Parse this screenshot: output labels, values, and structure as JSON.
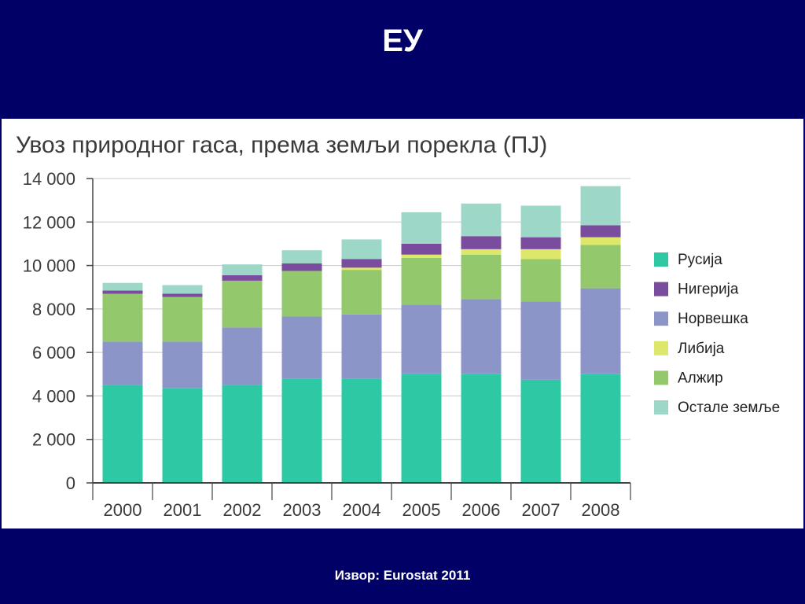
{
  "slide": {
    "title": "ЕУ",
    "source": "Извор: Eurostat 2011"
  },
  "colors": {
    "background": "#000066",
    "panel": "#ffffff",
    "axis": "#444444",
    "grid": "#c8c8c8"
  },
  "chart_data": {
    "type": "bar",
    "stacked": true,
    "title": "Увоз природног гаса, према земљи порекла (ПЈ)",
    "xlabel": "",
    "ylabel": "",
    "categories": [
      "2000",
      "2001",
      "2002",
      "2003",
      "2004",
      "2005",
      "2006",
      "2007",
      "2008"
    ],
    "ylim": [
      0,
      14000
    ],
    "yticks": [
      0,
      2000,
      4000,
      6000,
      8000,
      10000,
      12000,
      14000
    ],
    "ytick_labels": [
      "0",
      "2 000",
      "4 000",
      "6 000",
      "8 000",
      "10 000",
      "12 000",
      "14 000"
    ],
    "grid": true,
    "legend_position": "right",
    "series": [
      {
        "name": "Русија",
        "color": "#2ec8a4",
        "values": [
          4500,
          4350,
          4500,
          4800,
          4800,
          5000,
          5000,
          4750,
          5000
        ]
      },
      {
        "name": "Норвешка",
        "color": "#8c95c8",
        "values": [
          2000,
          2150,
          2650,
          2850,
          2950,
          3200,
          3450,
          3600,
          3950
        ]
      },
      {
        "name": "Алжир",
        "color": "#93c96c",
        "values": [
          2200,
          2050,
          2150,
          2100,
          2050,
          2150,
          2050,
          1950,
          2000
        ]
      },
      {
        "name": "Либија",
        "color": "#dde86a",
        "values": [
          0,
          0,
          0,
          0,
          100,
          150,
          250,
          450,
          350
        ]
      },
      {
        "name": "Нигерија",
        "color": "#7a4c9e",
        "values": [
          150,
          150,
          250,
          350,
          400,
          500,
          600,
          550,
          550
        ]
      },
      {
        "name": "Остале земље",
        "color": "#9dd7c8",
        "values": [
          350,
          400,
          500,
          600,
          900,
          1450,
          1500,
          1450,
          1800
        ]
      }
    ],
    "legend_order": [
      "Русија",
      "Нигерија",
      "Норвешка",
      "Либија",
      "Алжир",
      "Остале земље"
    ]
  }
}
